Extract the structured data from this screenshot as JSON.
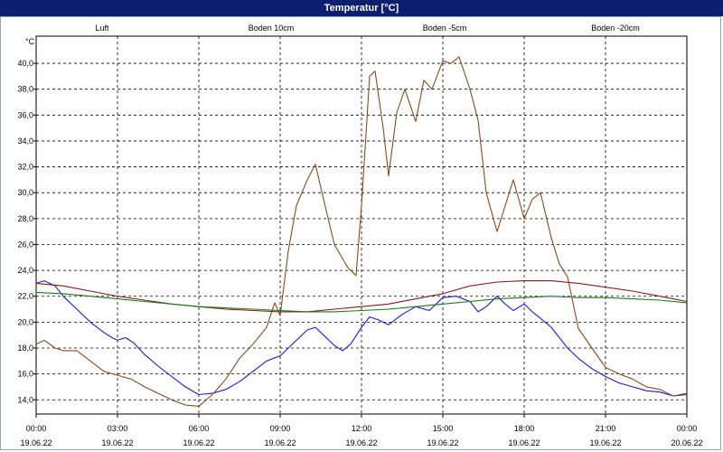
{
  "window": {
    "title": "Temperatur [°C]"
  },
  "chart_data": {
    "type": "line",
    "title": "Temperatur [°C]",
    "ylabel": "°C",
    "ylim": [
      12.9,
      42.1
    ],
    "yticks": [
      14,
      16,
      18,
      20,
      22,
      24,
      26,
      28,
      30,
      32,
      34,
      36,
      38,
      40
    ],
    "ytick_labels": [
      "14,0",
      "16,0",
      "18,0",
      "20,0",
      "22,0",
      "24,0",
      "26,0",
      "28,0",
      "30,0",
      "32,0",
      "34,0",
      "36,0",
      "38,0",
      "40,0"
    ],
    "xlim": [
      0,
      24
    ],
    "xticks": [
      0,
      3,
      6,
      9,
      12,
      15,
      18,
      21,
      24
    ],
    "xtick_times": [
      "00:00",
      "03:00",
      "06:00",
      "09:00",
      "12:00",
      "15:00",
      "18:00",
      "21:00",
      "00:00"
    ],
    "xtick_dates": [
      "19.06.22",
      "19.06.22",
      "19.06.22",
      "19.06.22",
      "19.06.22",
      "19.06.22",
      "19.06.22",
      "19.06.22",
      "20.06.22"
    ],
    "grid": true,
    "legend": "top",
    "series": [
      {
        "name": "Luft",
        "color": "#1a1adb",
        "x": [
          0,
          0.3,
          0.7,
          1,
          1.5,
          2,
          2.5,
          2.8,
          3,
          3.3,
          3.6,
          4,
          4.5,
          5,
          5.5,
          6,
          6.5,
          7,
          7.5,
          8,
          8.5,
          9,
          9.3,
          9.6,
          10,
          10.3,
          10.5,
          10.8,
          11,
          11.3,
          11.6,
          12,
          12.3,
          12.6,
          13,
          13.5,
          14,
          14.5,
          15,
          15.5,
          16,
          16.3,
          16.6,
          17,
          17.3,
          17.6,
          18,
          18.3,
          18.6,
          19,
          19.3,
          19.6,
          20,
          20.5,
          21,
          21.5,
          22,
          22.5,
          23,
          23.5,
          24
        ],
        "values": [
          23.0,
          23.2,
          22.8,
          22.0,
          21.0,
          20.0,
          19.2,
          18.8,
          18.6,
          18.8,
          18.4,
          17.5,
          16.6,
          15.8,
          15.0,
          14.4,
          14.5,
          14.8,
          15.4,
          16.2,
          17.0,
          17.4,
          18.0,
          18.6,
          19.4,
          19.6,
          19.2,
          18.6,
          18.2,
          17.8,
          18.3,
          19.6,
          20.4,
          20.2,
          19.8,
          20.6,
          21.2,
          20.9,
          21.9,
          22.0,
          21.6,
          20.8,
          21.2,
          22.0,
          21.4,
          20.9,
          21.4,
          20.8,
          20.3,
          19.6,
          18.8,
          18.0,
          17.2,
          16.4,
          15.8,
          15.3,
          15.0,
          14.7,
          14.6,
          14.3,
          14.4
        ]
      },
      {
        "name": "Boden 10cm",
        "color": "#8a4a1c",
        "x": [
          0,
          0.3,
          0.7,
          1,
          1.5,
          2,
          2.5,
          3,
          3.5,
          4,
          4.5,
          5,
          5.5,
          6,
          6.5,
          7,
          7.5,
          8,
          8.5,
          8.8,
          9,
          9.3,
          9.6,
          10,
          10.3,
          10.6,
          11,
          11.5,
          11.8,
          12,
          12.3,
          12.5,
          12.8,
          13,
          13.3,
          13.6,
          14,
          14.3,
          14.6,
          15,
          15.3,
          15.6,
          16,
          16.3,
          16.6,
          17,
          17.3,
          17.6,
          18,
          18.3,
          18.6,
          19,
          19.3,
          19.6,
          20,
          20.5,
          21,
          21.5,
          22,
          22.5,
          23,
          23.5,
          24
        ],
        "values": [
          18.3,
          18.6,
          18.0,
          17.8,
          17.8,
          17.0,
          16.2,
          15.9,
          15.6,
          15.0,
          14.5,
          14.0,
          13.6,
          13.5,
          14.4,
          15.6,
          17.2,
          18.3,
          19.6,
          21.5,
          20.5,
          25.5,
          29.0,
          31.0,
          32.2,
          29.5,
          26.0,
          24.2,
          23.6,
          29.0,
          39.0,
          39.4,
          35.0,
          31.3,
          36.2,
          38.0,
          35.5,
          38.7,
          38.0,
          40.2,
          40.0,
          40.5,
          38.0,
          35.6,
          30.0,
          27.0,
          29.0,
          31.0,
          28.0,
          29.5,
          30.0,
          26.5,
          24.5,
          23.5,
          19.5,
          18.0,
          16.5,
          16.0,
          15.6,
          15.0,
          14.8,
          14.3,
          14.5
        ]
      },
      {
        "name": "Boden -5cm",
        "color": "#8b1a1a",
        "x": [
          0,
          1,
          2,
          3,
          4,
          5,
          6,
          7,
          8,
          9,
          10,
          11,
          12,
          13,
          14,
          15,
          16,
          17,
          18,
          19,
          20,
          21,
          22,
          23,
          24
        ],
        "values": [
          23.0,
          22.8,
          22.4,
          22.0,
          21.7,
          21.4,
          21.2,
          21.0,
          20.9,
          20.8,
          20.8,
          21.0,
          21.2,
          21.4,
          21.8,
          22.2,
          22.8,
          23.1,
          23.2,
          23.2,
          23.0,
          22.7,
          22.4,
          22.0,
          21.6
        ]
      },
      {
        "name": "Boden -20cm",
        "color": "#1a7a1a",
        "x": [
          0,
          1,
          2,
          3,
          4,
          5,
          6,
          7,
          8,
          9,
          10,
          11,
          12,
          13,
          14,
          15,
          16,
          17,
          18,
          19,
          20,
          21,
          22,
          23,
          24
        ],
        "values": [
          22.3,
          22.2,
          22.0,
          21.8,
          21.6,
          21.4,
          21.2,
          21.1,
          21.0,
          20.9,
          20.8,
          20.8,
          20.9,
          21.0,
          21.2,
          21.4,
          21.6,
          21.8,
          21.9,
          22.0,
          21.9,
          21.9,
          21.8,
          21.7,
          21.5
        ]
      }
    ]
  }
}
